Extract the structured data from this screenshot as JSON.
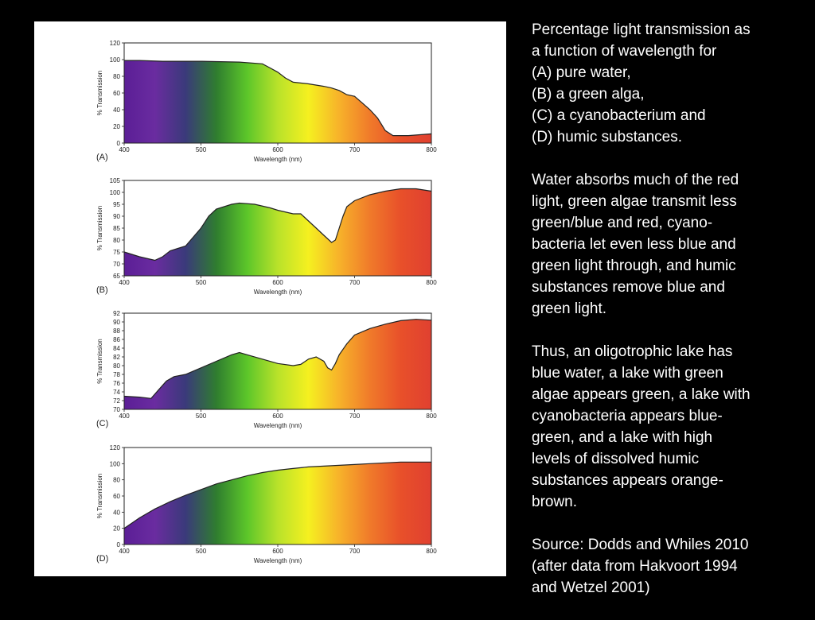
{
  "colors": {
    "page_background": "#000000",
    "figure_background": "#ffffff",
    "spectrum": [
      "#5b1e96",
      "#6a2ca0",
      "#3a3a7a",
      "#2f7d2f",
      "#5cc62a",
      "#b9e22a",
      "#f5f020",
      "#f7b22a",
      "#f07a2a",
      "#e8502a",
      "#e04030"
    ],
    "text": "#ffffff"
  },
  "description": {
    "intro_lines": [
      "Percentage light transmission as",
      "a function of wavelength for",
      "(A) pure water,",
      "(B) a green alga,",
      "(C) a cyanobacterium and",
      "(D) humic substances."
    ],
    "explanation_lines": [
      "Water absorbs much of the red",
      "light, green algae transmit less",
      "green/blue and red, cyano-",
      "bacteria let even less blue and",
      "green light through, and humic",
      "substances remove blue and",
      "green light."
    ],
    "conclusion_lines": [
      "Thus, an oligotrophic lake has",
      "blue water, a lake with green",
      "algae appears green, a lake with",
      "cyanobacteria appears blue-",
      "green, and a lake with high",
      "levels of dissolved humic",
      "substances appears orange-",
      "brown."
    ],
    "source_lines": [
      "Source: Dodds and Whiles 2010",
      "(after data from Hakvoort 1994",
      "and Wetzel 2001)"
    ]
  },
  "chart_data": [
    {
      "type": "area",
      "panel_label": "(A)",
      "xlabel": "Wavelength (nm)",
      "ylabel": "% Transmission",
      "xlim": [
        400,
        800
      ],
      "ylim": [
        0,
        120
      ],
      "xticks": [
        400,
        500,
        600,
        700,
        800
      ],
      "yticks": [
        0,
        20,
        40,
        60,
        80,
        100,
        120
      ],
      "fill": "spectrum-gradient",
      "x": [
        400,
        420,
        450,
        500,
        550,
        580,
        590,
        600,
        610,
        620,
        640,
        660,
        670,
        680,
        690,
        700,
        710,
        720,
        730,
        740,
        750,
        770,
        800
      ],
      "y": [
        99,
        99,
        98,
        98,
        97,
        95,
        90,
        85,
        78,
        73,
        71,
        68,
        66,
        63,
        58,
        56,
        48,
        40,
        30,
        15,
        9,
        9,
        11
      ]
    },
    {
      "type": "area",
      "panel_label": "(B)",
      "xlabel": "Wavelength (nm)",
      "ylabel": "% Transmission",
      "xlim": [
        400,
        800
      ],
      "ylim": [
        65,
        105
      ],
      "xticks": [
        400,
        500,
        600,
        700,
        800
      ],
      "yticks": [
        65,
        70,
        75,
        80,
        85,
        90,
        95,
        100,
        105
      ],
      "fill": "spectrum-gradient",
      "x": [
        400,
        420,
        440,
        450,
        460,
        470,
        480,
        500,
        510,
        520,
        540,
        550,
        570,
        590,
        600,
        620,
        630,
        640,
        650,
        660,
        670,
        675,
        680,
        685,
        690,
        700,
        720,
        740,
        760,
        780,
        800
      ],
      "y": [
        75,
        73,
        71.5,
        73,
        75.5,
        76.5,
        77.5,
        85,
        90,
        93,
        95,
        95.5,
        95,
        93.5,
        92.5,
        91,
        91,
        88,
        85,
        82,
        79,
        80,
        85,
        90,
        94,
        96.5,
        99,
        100.5,
        101.5,
        101.5,
        100.5
      ]
    },
    {
      "type": "area",
      "panel_label": "(C)",
      "xlabel": "Wavelength (nm)",
      "ylabel": "% Transmission",
      "xlim": [
        400,
        800
      ],
      "ylim": [
        70,
        92
      ],
      "xticks": [
        400,
        500,
        600,
        700,
        800
      ],
      "yticks": [
        70,
        72,
        74,
        76,
        78,
        80,
        82,
        84,
        86,
        88,
        90,
        92
      ],
      "fill": "spectrum-gradient",
      "x": [
        400,
        420,
        435,
        445,
        455,
        465,
        480,
        500,
        520,
        540,
        550,
        560,
        580,
        600,
        620,
        630,
        640,
        650,
        660,
        665,
        670,
        675,
        680,
        690,
        700,
        720,
        740,
        760,
        780,
        800
      ],
      "y": [
        73,
        72.8,
        72.5,
        74.5,
        76.5,
        77.5,
        78,
        79.5,
        81,
        82.5,
        83,
        82.5,
        81.5,
        80.5,
        80,
        80.3,
        81.5,
        82,
        81,
        79.5,
        79,
        80.5,
        82.5,
        85,
        87,
        88.5,
        89.5,
        90.3,
        90.6,
        90.4
      ]
    },
    {
      "type": "area",
      "panel_label": "(D)",
      "xlabel": "Wavelength (nm)",
      "ylabel": "% Transmission",
      "xlim": [
        400,
        800
      ],
      "ylim": [
        0,
        120
      ],
      "xticks": [
        400,
        500,
        600,
        700,
        800
      ],
      "yticks": [
        0,
        20,
        40,
        60,
        80,
        100,
        120
      ],
      "fill": "spectrum-gradient",
      "x": [
        400,
        420,
        440,
        460,
        480,
        500,
        520,
        540,
        560,
        580,
        600,
        620,
        640,
        660,
        680,
        700,
        720,
        740,
        760,
        780,
        800
      ],
      "y": [
        20,
        33,
        44,
        53,
        61,
        68,
        75,
        80,
        85,
        89,
        92,
        94,
        96,
        97,
        98,
        99,
        100,
        101,
        102,
        102,
        102
      ]
    }
  ]
}
